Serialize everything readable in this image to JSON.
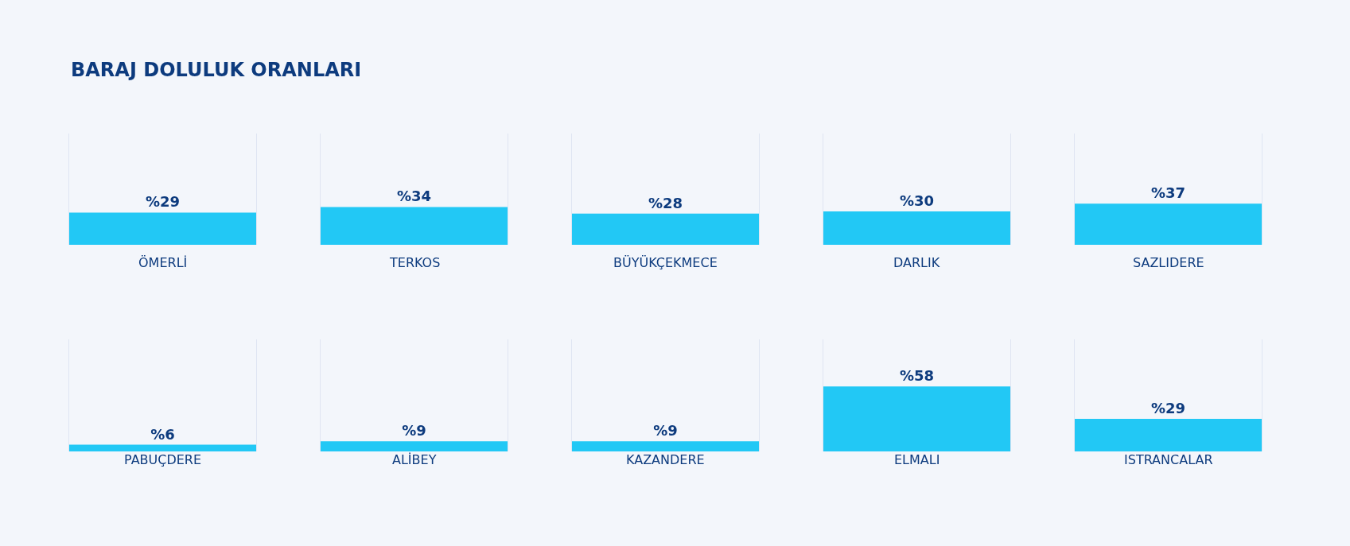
{
  "chart_data": {
    "type": "other",
    "title": "BARAJ DOLULUK ORANLARI",
    "categories": [
      "ÖMERLİ",
      "TERKOS",
      "BÜYÜKÇEKMECE",
      "DARLIK",
      "SAZLIDERE",
      "PABUÇDERE",
      "ALİBEY",
      "KAZANDERE",
      "ELMALI",
      "ISTRANCALAR"
    ],
    "values": [
      29,
      34,
      28,
      30,
      37,
      6,
      9,
      9,
      58,
      29
    ],
    "value_labels": [
      "%29",
      "%34",
      "%28",
      "%30",
      "%37",
      "%6",
      "%9",
      "%9",
      "%58",
      "%29"
    ],
    "color": "#22c8f5"
  }
}
